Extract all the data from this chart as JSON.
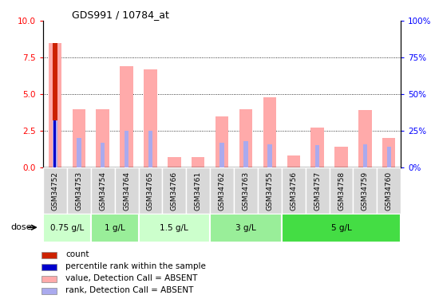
{
  "title": "GDS991 / 10784_at",
  "samples": [
    "GSM34752",
    "GSM34753",
    "GSM34754",
    "GSM34764",
    "GSM34765",
    "GSM34766",
    "GSM34761",
    "GSM34762",
    "GSM34763",
    "GSM34755",
    "GSM34756",
    "GSM34757",
    "GSM34758",
    "GSM34759",
    "GSM34760"
  ],
  "value_absent": [
    8.5,
    4.0,
    4.0,
    6.9,
    6.7,
    0.7,
    0.7,
    3.5,
    4.0,
    4.8,
    0.8,
    2.7,
    1.4,
    3.9,
    2.0
  ],
  "rank_absent_pct": [
    32,
    20,
    17,
    25,
    25,
    0,
    0,
    17,
    18,
    16,
    0,
    15,
    0,
    16,
    14
  ],
  "count_val": 8.5,
  "percentile_val_pct": 32,
  "dose_groups": [
    {
      "label": "0.75 g/L",
      "start": 0,
      "end": 1,
      "color": "#ccffcc"
    },
    {
      "label": "1 g/L",
      "start": 2,
      "end": 3,
      "color": "#99ee99"
    },
    {
      "label": "1.5 g/L",
      "start": 4,
      "end": 6,
      "color": "#ccffcc"
    },
    {
      "label": "3 g/L",
      "start": 7,
      "end": 9,
      "color": "#99ee99"
    },
    {
      "label": "5 g/L",
      "start": 10,
      "end": 14,
      "color": "#44dd44"
    }
  ],
  "ylim_left": [
    0,
    10
  ],
  "ylim_right": [
    0,
    100
  ],
  "yticks_left": [
    0,
    2.5,
    5.0,
    7.5,
    10
  ],
  "yticks_right": [
    0,
    25,
    50,
    75,
    100
  ],
  "color_count": "#cc2200",
  "color_percentile": "#0000cc",
  "color_value_absent": "#ffaaaa",
  "color_rank_absent": "#aaaaee",
  "legend_items": [
    {
      "label": "count",
      "color": "#cc2200"
    },
    {
      "label": "percentile rank within the sample",
      "color": "#0000cc"
    },
    {
      "label": "value, Detection Call = ABSENT",
      "color": "#ffaaaa"
    },
    {
      "label": "rank, Detection Call = ABSENT",
      "color": "#aaaaee"
    }
  ],
  "dose_label": "dose"
}
